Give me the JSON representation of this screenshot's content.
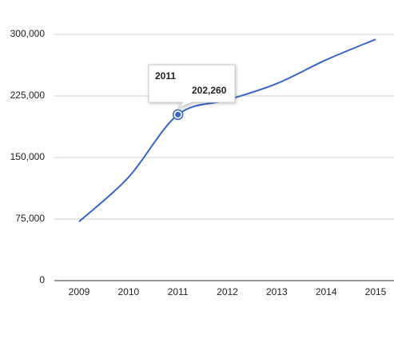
{
  "chart_data": {
    "type": "line",
    "categories": [
      "2009",
      "2010",
      "2011",
      "2012",
      "2013",
      "2014",
      "2015"
    ],
    "values": [
      72000,
      126000,
      202260,
      220000,
      240000,
      269000,
      294000
    ],
    "color": "#3366cc",
    "ylim": [
      0,
      300000
    ],
    "yticks": [
      0,
      {
        "value": 75000,
        "label": "75,000"
      },
      {
        "value": 150000,
        "label": "150,000"
      },
      {
        "value": 225000,
        "label": "225,000"
      },
      {
        "value": 300000,
        "label": "300,000"
      }
    ],
    "grid": true,
    "tooltip": {
      "index": 2,
      "value_label": "202,260"
    }
  }
}
